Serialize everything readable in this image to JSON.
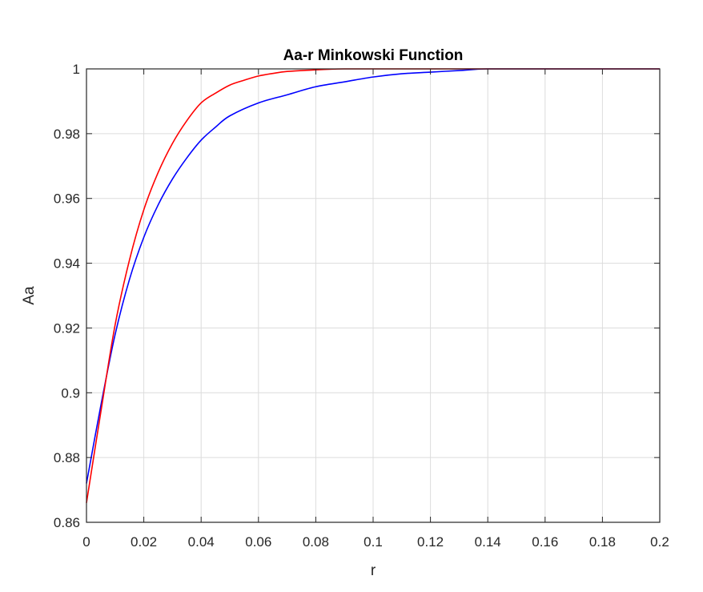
{
  "chart_data": {
    "type": "line",
    "title": "Aa-r Minkowski Function",
    "xlabel": "r",
    "ylabel": "Aa",
    "xlim": [
      0,
      0.2
    ],
    "ylim": [
      0.86,
      1
    ],
    "x_ticks": [
      "0",
      "0.02",
      "0.04",
      "0.06",
      "0.08",
      "0.1",
      "0.12",
      "0.14",
      "0.16",
      "0.18",
      "0.2"
    ],
    "y_ticks": [
      "0.86",
      "0.88",
      "0.9",
      "0.92",
      "0.94",
      "0.96",
      "0.98",
      "1"
    ],
    "grid": true,
    "series": [
      {
        "color": "#0000ff",
        "x": [
          0,
          0.005,
          0.01,
          0.015,
          0.02,
          0.025,
          0.03,
          0.035,
          0.04,
          0.045,
          0.05,
          0.06,
          0.07,
          0.08,
          0.09,
          0.1,
          0.11,
          0.12,
          0.13,
          0.14,
          0.16,
          0.18,
          0.2
        ],
        "values": [
          0.872,
          0.896,
          0.918,
          0.935,
          0.948,
          0.958,
          0.966,
          0.9725,
          0.978,
          0.982,
          0.9855,
          0.9895,
          0.992,
          0.9945,
          0.996,
          0.9975,
          0.9985,
          0.999,
          0.9995,
          1.0,
          1.0,
          1.0,
          1.0
        ]
      },
      {
        "color": "#ff0000",
        "x": [
          0,
          0.005,
          0.01,
          0.015,
          0.02,
          0.025,
          0.03,
          0.035,
          0.04,
          0.045,
          0.05,
          0.055,
          0.06,
          0.065,
          0.07,
          0.08,
          0.09,
          0.1,
          0.12,
          0.14,
          0.16,
          0.18,
          0.2
        ],
        "values": [
          0.866,
          0.894,
          0.921,
          0.941,
          0.9565,
          0.968,
          0.977,
          0.984,
          0.9895,
          0.9925,
          0.995,
          0.9965,
          0.9978,
          0.9986,
          0.9992,
          0.9997,
          1.0,
          1.0,
          1.0,
          1.0,
          1.0,
          1.0,
          1.0
        ]
      }
    ]
  }
}
